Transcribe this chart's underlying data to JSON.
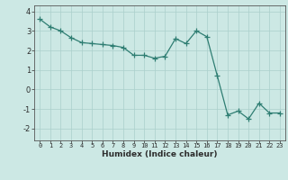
{
  "x": [
    0,
    1,
    2,
    3,
    4,
    5,
    6,
    7,
    8,
    9,
    10,
    11,
    12,
    13,
    14,
    15,
    16,
    17,
    18,
    19,
    20,
    21,
    22,
    23
  ],
  "y": [
    3.6,
    3.2,
    3.0,
    2.65,
    2.4,
    2.35,
    2.3,
    2.25,
    2.15,
    1.75,
    1.75,
    1.6,
    1.7,
    2.6,
    2.35,
    3.0,
    2.7,
    0.7,
    -1.3,
    -1.1,
    -1.5,
    -0.7,
    -1.2,
    -1.2
  ],
  "line_color": "#2e7d72",
  "marker": "+",
  "marker_size": 4,
  "marker_color": "#2e7d72",
  "bg_color": "#cce8e4",
  "grid_color": "#aacfcb",
  "xlabel": "Humidex (Indice chaleur)",
  "yticks": [
    -2,
    -1,
    0,
    1,
    2,
    3,
    4
  ],
  "xticks": [
    0,
    1,
    2,
    3,
    4,
    5,
    6,
    7,
    8,
    9,
    10,
    11,
    12,
    13,
    14,
    15,
    16,
    17,
    18,
    19,
    20,
    21,
    22,
    23
  ],
  "xlim": [
    -0.5,
    23.5
  ],
  "ylim": [
    -2.6,
    4.3
  ]
}
